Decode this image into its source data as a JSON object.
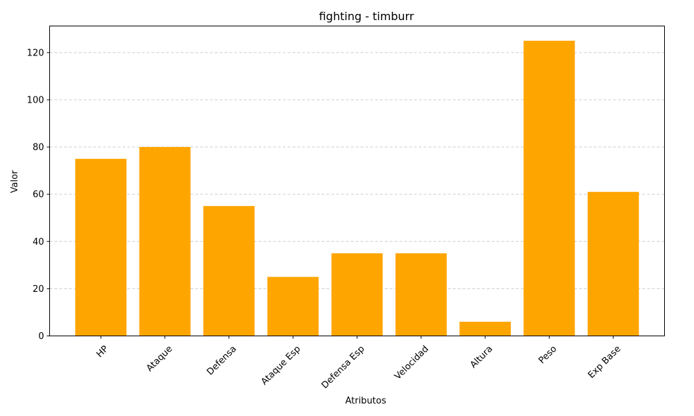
{
  "chart_data": {
    "type": "bar",
    "title": "fighting - timburr",
    "xlabel": "Atributos",
    "ylabel": "Valor",
    "categories": [
      "HP",
      "Ataque",
      "Defensa",
      "Ataque Esp",
      "Defensa Esp",
      "Velocidad",
      "Altura",
      "Peso",
      "Exp Base"
    ],
    "values": [
      75,
      80,
      55,
      25,
      35,
      35,
      6,
      125,
      61
    ],
    "ylim": [
      0,
      131.25
    ],
    "yticks": [
      0,
      20,
      40,
      60,
      80,
      100,
      120
    ],
    "grid": "y-dashed",
    "bar_color": "#ffa500",
    "legend": "none"
  }
}
